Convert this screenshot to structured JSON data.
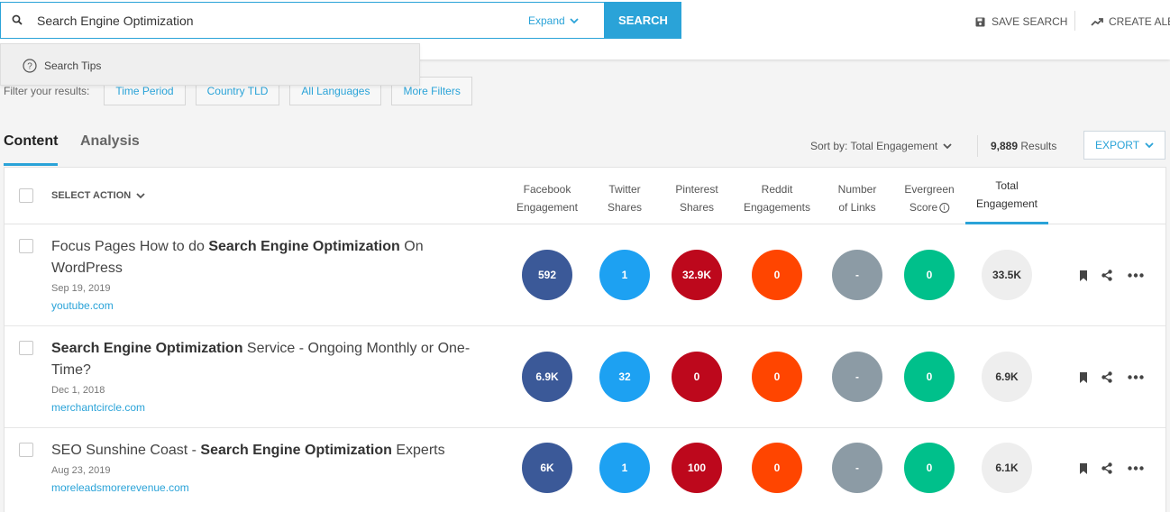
{
  "search": {
    "value": "Search Engine Optimization",
    "expand_label": "Expand",
    "button_label": "SEARCH",
    "tips_label": "Search Tips"
  },
  "header": {
    "save_search_label": "SAVE SEARCH",
    "create_alert_label": "CREATE ALE"
  },
  "filters": {
    "label": "Filter your results:",
    "buttons": [
      "Time Period",
      "Country TLD",
      "All Languages",
      "More Filters"
    ]
  },
  "tabs": [
    {
      "label": "Content",
      "active": true
    },
    {
      "label": "Analysis",
      "active": false
    }
  ],
  "toolbar": {
    "sort_label": "Sort by: Total Engagement",
    "results_count": "9,889",
    "results_label": "Results",
    "export_label": "EXPORT"
  },
  "table": {
    "select_action_label": "SELECT ACTION",
    "columns": [
      {
        "line1": "Facebook",
        "line2": "Engagement"
      },
      {
        "line1": "Twitter",
        "line2": "Shares"
      },
      {
        "line1": "Pinterest",
        "line2": "Shares"
      },
      {
        "line1": "Reddit",
        "line2": "Engagements"
      },
      {
        "line1": "Number",
        "line2": "of Links"
      },
      {
        "line1": "Evergreen",
        "line2": "Score"
      },
      {
        "line1": "Total",
        "line2": "Engagement"
      }
    ],
    "rows": [
      {
        "title_pre": "Focus Pages How to do ",
        "title_bold": "Search Engine Optimization",
        "title_post": " On WordPress",
        "date": "Sep 19, 2019",
        "domain": "youtube.com",
        "metrics": [
          "592",
          "1",
          "32.9K",
          "0",
          "-",
          "0",
          "33.5K"
        ]
      },
      {
        "title_pre": "",
        "title_bold": "Search Engine Optimization",
        "title_post": " Service - Ongoing Monthly or One-Time?",
        "date": "Dec 1, 2018",
        "domain": "merchantcircle.com",
        "metrics": [
          "6.9K",
          "32",
          "0",
          "0",
          "-",
          "0",
          "6.9K"
        ]
      },
      {
        "title_pre": "SEO Sunshine Coast - ",
        "title_bold": "Search Engine Optimization",
        "title_post": " Experts",
        "date": "Aug 23, 2019",
        "domain": "moreleadsmorerevenue.com",
        "metrics": [
          "6K",
          "1",
          "100",
          "0",
          "-",
          "0",
          "6.1K"
        ]
      }
    ]
  },
  "colors": {
    "accent": "#2aa3d8",
    "facebook": "#3b5998",
    "twitter": "#1da1f2",
    "pinterest": "#bd081c",
    "reddit": "#ff4500",
    "links": "#8c9ba5",
    "evergreen": "#00c08b",
    "total": "#eeeeee"
  }
}
